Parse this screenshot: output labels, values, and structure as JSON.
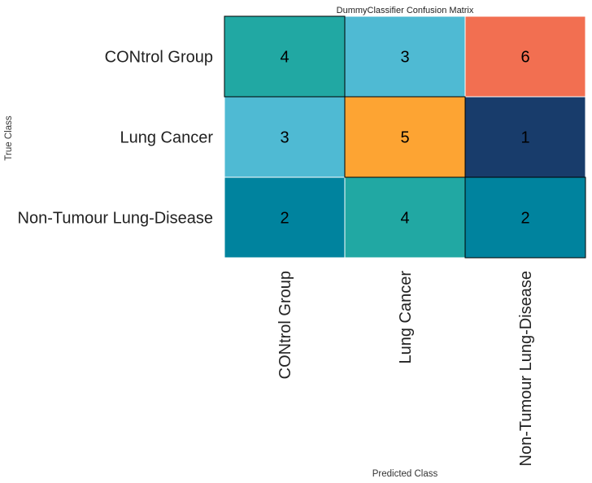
{
  "chart_data": {
    "type": "heatmap",
    "title": "DummyClassifier Confusion Matrix",
    "xlabel": "Predicted Class",
    "ylabel": "True Class",
    "row_labels": [
      "CONtrol Group",
      "Lung Cancer",
      "Non-Tumour Lung-Disease"
    ],
    "col_labels": [
      "CONtrol Group",
      "Lung Cancer",
      "Non-Tumour Lung-Disease"
    ],
    "values": [
      [
        4,
        3,
        6
      ],
      [
        3,
        5,
        1
      ],
      [
        2,
        4,
        2
      ]
    ],
    "cell_colors": [
      [
        "#21a8a3",
        "#4fbad3",
        "#f26f51"
      ],
      [
        "#4fbad3",
        "#fda433",
        "#183c6b"
      ],
      [
        "#00839e",
        "#21a8a3",
        "#00839e"
      ]
    ],
    "diagonal_outline": true,
    "grid": false
  }
}
